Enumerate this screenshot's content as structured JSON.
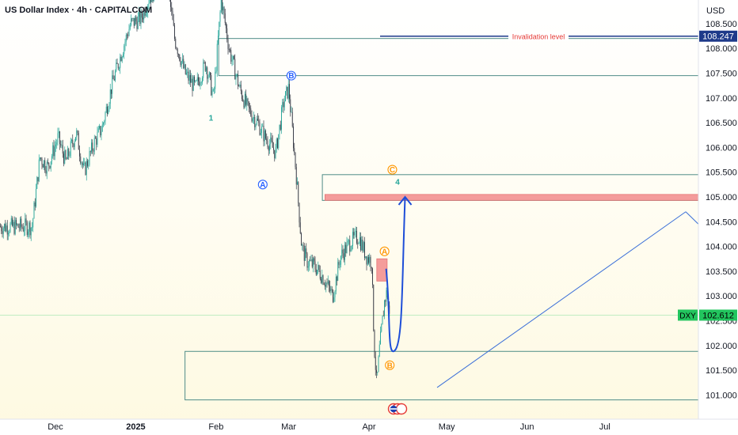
{
  "chart_data": {
    "type": "candlestick",
    "title": "US Dollar Index · 4h · CAPITALCOM",
    "currency": "USD",
    "symbol": "DXY",
    "last_price": "102.612",
    "ylim": [
      100.75,
      108.85
    ],
    "y_ticks": [
      "108.500",
      "108.000",
      "107.500",
      "107.000",
      "106.500",
      "106.000",
      "105.500",
      "105.000",
      "104.500",
      "104.000",
      "103.500",
      "103.000",
      "102.500",
      "102.000",
      "101.500",
      "101.000"
    ],
    "x_ticks": [
      {
        "label": "Dec",
        "bold": false
      },
      {
        "label": "2025",
        "bold": true
      },
      {
        "label": "Feb",
        "bold": false
      },
      {
        "label": "Mar",
        "bold": false
      },
      {
        "label": "Apr",
        "bold": false
      },
      {
        "label": "May",
        "bold": false
      },
      {
        "label": "Jun",
        "bold": false
      },
      {
        "label": "Jul",
        "bold": false
      }
    ],
    "price_path": [
      [
        "Nov 22",
        104.4
      ],
      [
        "Nov 25",
        105.8
      ],
      [
        "Nov 28",
        105.6
      ],
      [
        "Dec 02",
        106.2
      ],
      [
        "Dec 05",
        105.7
      ],
      [
        "Dec 09",
        106.3
      ],
      [
        "Dec 12",
        105.5
      ],
      [
        "Dec 16",
        106.1
      ],
      [
        "Dec 19",
        106.4
      ],
      [
        "Dec 23",
        107.3
      ],
      [
        "Dec 27",
        108.0
      ],
      [
        "Dec 30",
        108.5
      ],
      [
        "Jan 03",
        108.6
      ],
      [
        "Jan 06",
        109.0
      ],
      [
        "Jan 10",
        109.3
      ],
      [
        "Jan 13",
        109.4
      ],
      [
        "Jan 16",
        108.2
      ],
      [
        "Jan 20",
        107.5
      ],
      [
        "Jan 24",
        107.2
      ],
      [
        "Jan 28",
        107.7
      ],
      [
        "Jan 31",
        107.0
      ],
      [
        "Feb 03",
        109.0
      ],
      [
        "Feb 06",
        108.0
      ],
      [
        "Feb 10",
        107.2
      ],
      [
        "Feb 13",
        106.8
      ],
      [
        "Feb 17",
        106.5
      ],
      [
        "Feb 20",
        106.2
      ],
      [
        "Feb 24",
        105.9
      ],
      [
        "Feb 27",
        106.9
      ],
      [
        "Mar 01",
        107.2
      ],
      [
        "Mar 04",
        105.4
      ],
      [
        "Mar 06",
        104.0
      ],
      [
        "Mar 08",
        103.7
      ],
      [
        "Mar 11",
        103.6
      ],
      [
        "Mar 14",
        103.4
      ],
      [
        "Mar 18",
        103.0
      ],
      [
        "Mar 21",
        103.8
      ],
      [
        "Mar 25",
        104.1
      ],
      [
        "Mar 28",
        104.2
      ],
      [
        "Mar 31",
        103.8
      ],
      [
        "Apr 02",
        103.7
      ],
      [
        "Apr 03",
        102.0
      ],
      [
        "Apr 04",
        101.2
      ],
      [
        "Apr 05",
        101.9
      ],
      [
        "Apr 07",
        102.9
      ],
      [
        "Apr 08",
        103.1
      ],
      [
        "Apr 09",
        102.5
      ]
    ],
    "annotations": {
      "invalidation_label": "Invalidation level",
      "invalidation_value": "108.247",
      "invalidation_price": 108.247,
      "wave_labels": [
        {
          "text": "1",
          "date": "Jan 30",
          "price": 106.6,
          "style": "plain",
          "color": "#26a69a"
        },
        {
          "text": "A",
          "date": "Feb 19",
          "price": 105.25,
          "style": "circle",
          "color": "#2962ff"
        },
        {
          "text": "B",
          "date": "Mar 02",
          "price": 107.45,
          "style": "circle",
          "color": "#2962ff"
        },
        {
          "text": "C",
          "date": "Apr 10",
          "price": 105.55,
          "style": "circle",
          "color": "#ff9800"
        },
        {
          "text": "4",
          "date": "Apr 12",
          "price": 105.3,
          "style": "plain",
          "color": "#26a69a"
        },
        {
          "text": "A",
          "date": "Apr 07",
          "price": 103.9,
          "style": "circle",
          "color": "#ff9800"
        },
        {
          "text": "B",
          "date": "Apr 09",
          "price": 101.6,
          "style": "circle",
          "color": "#ff9800"
        }
      ],
      "zones": [
        {
          "kind": "outline",
          "from": "Feb 02",
          "to": "end",
          "top": 108.2,
          "bottom": 107.45
        },
        {
          "kind": "outline",
          "from": "Mar 14",
          "to": "end",
          "top": 105.45,
          "bottom": 104.93
        },
        {
          "kind": "filled",
          "from": "Mar 15",
          "to": "end",
          "top": 105.05,
          "bottom": 104.93
        },
        {
          "kind": "filled",
          "from": "Apr 04",
          "to": "Apr 08",
          "top": 103.75,
          "bottom": 103.3
        },
        {
          "kind": "outline",
          "from": "Jan 20",
          "to": "end",
          "top": 101.88,
          "bottom": 100.9
        }
      ],
      "colors": {
        "candle_up": "#26a69a",
        "candle_down": "#363a45",
        "invalidation": "#1e3a8a",
        "invalidation_text": "#e53935",
        "projection": "#1e4ed8",
        "zone_line": "#4f8c87",
        "zone_fill": "#f28b8b",
        "price_tag": "#22c55e"
      }
    }
  }
}
